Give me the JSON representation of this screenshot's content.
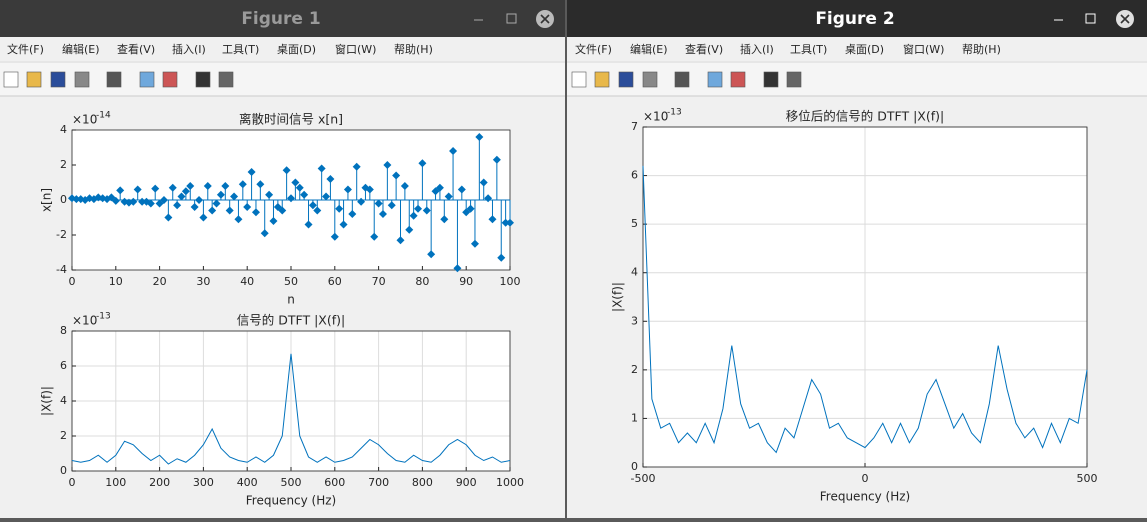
{
  "windows": [
    {
      "title": "Figure 1",
      "menu": [
        "文件(F)",
        "编辑(E)",
        "查看(V)",
        "插入(I)",
        "工具(T)",
        "桌面(D)",
        "窗口(W)",
        "帮助(H)"
      ]
    },
    {
      "title": "Figure 2",
      "menu": [
        "文件(F)",
        "编辑(E)",
        "查看(V)",
        "插入(I)",
        "工具(T)",
        "桌面(D)",
        "窗口(W)",
        "帮助(H)"
      ]
    }
  ],
  "chart_data": [
    {
      "type": "stem",
      "title": "离散时间信号 x[n]",
      "x_label": "n",
      "y_label": "x[n]",
      "y_multiplier": "×10",
      "y_exponent": "-14",
      "color": "#0072bd",
      "grid": false,
      "x": [
        0,
        1,
        2,
        3,
        4,
        5,
        6,
        7,
        8,
        9,
        10,
        11,
        12,
        13,
        14,
        15,
        16,
        17,
        18,
        19,
        20,
        21,
        22,
        23,
        24,
        25,
        26,
        27,
        28,
        29,
        30,
        31,
        32,
        33,
        34,
        35,
        36,
        37,
        38,
        39,
        40,
        41,
        42,
        43,
        44,
        45,
        46,
        47,
        48,
        49,
        50,
        51,
        52,
        53,
        54,
        55,
        56,
        57,
        58,
        59,
        60,
        61,
        62,
        63,
        64,
        65,
        66,
        67,
        68,
        69,
        70,
        71,
        72,
        73,
        74,
        75,
        76,
        77,
        78,
        79,
        80,
        81,
        82,
        83,
        84,
        85,
        86,
        87,
        88,
        89,
        90,
        91,
        92,
        93,
        94,
        95,
        96,
        97,
        98,
        99,
        100
      ],
      "values": [
        0.1,
        0.05,
        0.05,
        0,
        0.1,
        0.05,
        0.15,
        0.1,
        0.05,
        0.15,
        -0.05,
        0.55,
        -0.1,
        -0.15,
        -0.1,
        0.6,
        -0.1,
        -0.1,
        -0.2,
        0.65,
        -0.2,
        0,
        -1,
        0.7,
        -0.3,
        0.2,
        0.5,
        0.8,
        -0.4,
        0,
        -1,
        0.8,
        -0.6,
        -0.2,
        0.3,
        0.8,
        -0.6,
        0.2,
        -1.1,
        0.9,
        -0.4,
        1.6,
        -0.7,
        0.9,
        -1.9,
        0.3,
        -1.2,
        -0.4,
        -0.6,
        1.7,
        0.1,
        1,
        0.7,
        0.3,
        -1.4,
        -0.3,
        -0.6,
        1.8,
        0.2,
        1.2,
        -2.1,
        -0.5,
        -1.4,
        0.6,
        -0.8,
        1.9,
        -0.1,
        0.7,
        0.6,
        -2.1,
        -0.2,
        -0.8,
        2,
        -0.3,
        1.4,
        -2.3,
        0.8,
        -1.7,
        -0.9,
        -0.5,
        2.1,
        -0.6,
        -3.1,
        0.5,
        0.7,
        -1.1,
        0.2,
        2.8,
        -3.9,
        0.6,
        -0.7,
        -0.5,
        -2.5,
        3.6,
        1,
        0.1,
        -1.1,
        2.3,
        -3.3,
        -1.3,
        -1.3
      ],
      "xlim": [
        0,
        100
      ],
      "xticks": [
        0,
        10,
        20,
        30,
        40,
        50,
        60,
        70,
        80,
        90,
        100
      ],
      "ylim": [
        -4,
        4
      ],
      "yticks": [
        -4,
        -2,
        0,
        2,
        4
      ]
    },
    {
      "type": "line",
      "title": "信号的 DTFT |X(f)|",
      "x_label": "Frequency (Hz)",
      "y_label": "|X(f)|",
      "y_multiplier": "×10",
      "y_exponent": "-13",
      "color": "#0072bd",
      "grid": true,
      "x": [
        0,
        20,
        40,
        60,
        80,
        100,
        120,
        140,
        160,
        180,
        200,
        220,
        240,
        260,
        280,
        300,
        320,
        340,
        360,
        380,
        400,
        420,
        440,
        460,
        480,
        500,
        520,
        540,
        560,
        580,
        600,
        620,
        640,
        660,
        680,
        700,
        720,
        740,
        760,
        780,
        800,
        820,
        840,
        860,
        880,
        900,
        920,
        940,
        960,
        980,
        1000
      ],
      "values": [
        0.6,
        0.5,
        0.6,
        0.9,
        0.5,
        0.9,
        1.7,
        1.5,
        1.0,
        0.6,
        0.9,
        0.4,
        0.7,
        0.5,
        0.9,
        1.5,
        2.4,
        1.3,
        0.8,
        0.6,
        0.5,
        0.8,
        0.5,
        0.9,
        2.0,
        6.7,
        2.0,
        0.8,
        0.5,
        0.8,
        0.5,
        0.6,
        0.8,
        1.3,
        1.8,
        1.5,
        1.0,
        0.6,
        0.5,
        0.9,
        0.6,
        0.5,
        0.9,
        1.5,
        1.8,
        1.5,
        0.9,
        0.6,
        0.8,
        0.5,
        0.6
      ],
      "xlim": [
        0,
        1000
      ],
      "xticks": [
        0,
        100,
        200,
        300,
        400,
        500,
        600,
        700,
        800,
        900,
        1000
      ],
      "ylim": [
        0,
        8
      ],
      "yticks": [
        0,
        2,
        4,
        6,
        8
      ]
    },
    {
      "type": "line",
      "title": "移位后的信号的 DTFT |X(f)|",
      "x_label": "Frequency (Hz)",
      "y_label": "|X(f)|",
      "y_multiplier": "×10",
      "y_exponent": "-13",
      "color": "#0072bd",
      "grid": true,
      "x": [
        -500,
        -480,
        -460,
        -440,
        -420,
        -400,
        -380,
        -360,
        -340,
        -320,
        -300,
        -280,
        -260,
        -240,
        -220,
        -200,
        -180,
        -160,
        -140,
        -120,
        -100,
        -80,
        -60,
        -40,
        -20,
        0,
        20,
        40,
        60,
        80,
        100,
        120,
        140,
        160,
        180,
        200,
        220,
        240,
        260,
        280,
        300,
        320,
        340,
        360,
        380,
        400,
        420,
        440,
        460,
        480,
        500
      ],
      "values": [
        6.2,
        1.4,
        0.8,
        0.9,
        0.5,
        0.7,
        0.5,
        0.9,
        0.5,
        1.2,
        2.5,
        1.3,
        0.8,
        0.9,
        0.5,
        0.3,
        0.8,
        0.6,
        1.2,
        1.8,
        1.5,
        0.8,
        0.9,
        0.6,
        0.5,
        0.4,
        0.6,
        0.9,
        0.5,
        0.9,
        0.5,
        0.8,
        1.5,
        1.8,
        1.3,
        0.8,
        1.1,
        0.7,
        0.5,
        1.3,
        2.5,
        1.6,
        0.9,
        0.6,
        0.8,
        0.4,
        0.9,
        0.5,
        1.0,
        0.9,
        2.0
      ],
      "xlim": [
        -500,
        500
      ],
      "xticks": [
        -500,
        0,
        500
      ],
      "ylim": [
        0,
        7
      ],
      "yticks": [
        0,
        1,
        2,
        3,
        4,
        5,
        6,
        7
      ]
    }
  ]
}
